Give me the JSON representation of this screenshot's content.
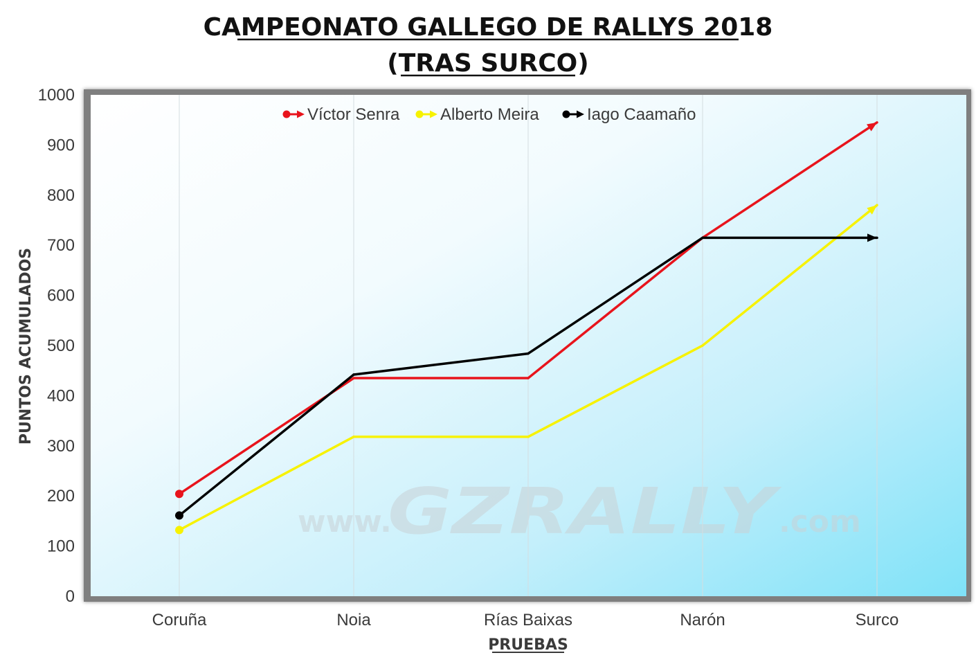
{
  "chart_data": {
    "type": "line",
    "title": "CAMPEONATO GALLEGO DE RALLYS 2018",
    "subtitle": "(TRAS SURCO)",
    "xlabel": "PRUEBAS",
    "ylabel": "PUNTOS ACUMULADOS",
    "categories": [
      "Coruña",
      "Noia",
      "Rías Baixas",
      "Narón",
      "Surco"
    ],
    "ylim": [
      0,
      1000
    ],
    "yticks": [
      "0",
      "100",
      "200",
      "300",
      "400",
      "500",
      "600",
      "700",
      "800",
      "900",
      "1000"
    ],
    "grid": "vertical",
    "legend_position": "top-center",
    "series": [
      {
        "name": "Víctor Senra",
        "color": "#e8141c",
        "values": [
          204,
          435,
          435,
          715,
          945
        ]
      },
      {
        "name": "Alberto Meira",
        "color": "#f7f200",
        "values": [
          132,
          318,
          318,
          500,
          780
        ]
      },
      {
        "name": "Iago Caamaño",
        "color": "#000000",
        "values": [
          161,
          442,
          484,
          715,
          715
        ]
      }
    ]
  },
  "watermark": {
    "prefix": "www.",
    "brand": "GZRALLY",
    "suffix": ".com"
  }
}
